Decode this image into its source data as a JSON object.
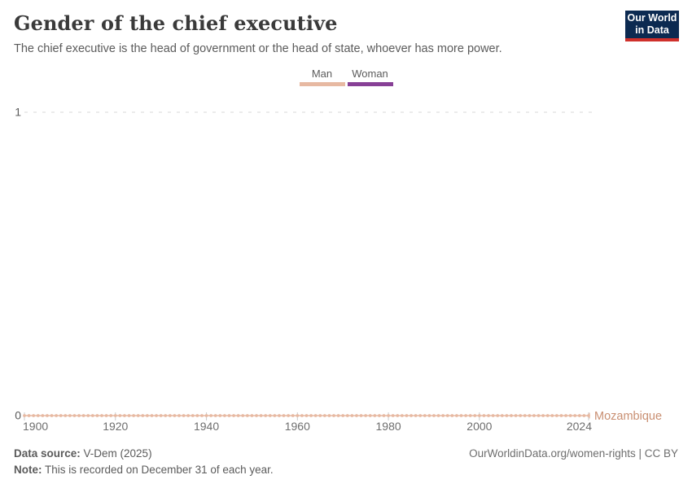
{
  "header": {
    "title": "Gender of the chief executive",
    "subtitle": "The chief executive is the head of government or the head of state, whoever has more power.",
    "logo": {
      "line1": "Our World",
      "line2": "in Data",
      "bg_color": "#0C2A51",
      "accent_color": "#CF302B"
    }
  },
  "legend": {
    "items": [
      {
        "label": "Man",
        "color": "#E7B9A2"
      },
      {
        "label": "Woman",
        "color": "#874096"
      }
    ]
  },
  "chart_data": {
    "type": "line",
    "title": "Gender of the chief executive",
    "xlabel": "",
    "ylabel": "",
    "x_range": [
      1900,
      2024
    ],
    "x_ticks": [
      1900,
      1920,
      1940,
      1960,
      1980,
      2000,
      2024
    ],
    "y_ticks": [
      0,
      1
    ],
    "ylim": [
      0,
      1
    ],
    "gridline_style": "dashed",
    "marker": "circle",
    "value_encoding": {
      "0": "Man",
      "1": "Woman"
    },
    "series": [
      {
        "name": "Mozambique",
        "color": "#E7B9A2",
        "label_color": "#C98F72",
        "x_start": 1900,
        "x_end": 2024,
        "step": 1,
        "constant_value": 0,
        "description": "Value is 0 (Man) for every year 1900-2024"
      }
    ]
  },
  "footer": {
    "datasource_label": "Data source:",
    "datasource_value": " V-Dem (2025)",
    "note_label": "Note:",
    "note_value": " This is recorded on December 31 of each year.",
    "citation": "OurWorldinData.org/women-rights | CC BY"
  }
}
